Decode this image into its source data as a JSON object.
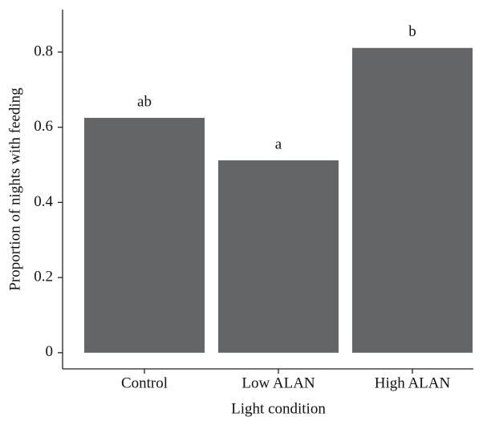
{
  "chart_data": {
    "type": "bar",
    "x_label": "Light condition",
    "y_label": "Proportion of nights with feeding",
    "categories": [
      "Control",
      "Low ALAN",
      "High ALAN"
    ],
    "values": [
      0.625,
      0.512,
      0.811
    ],
    "annotations": [
      "ab",
      "a",
      "b"
    ],
    "color": "#646566",
    "ylim": [
      -0.043,
      0.913
    ],
    "yticks": [
      0,
      0.2,
      0.4,
      0.6,
      0.8
    ],
    "grid": false
  }
}
